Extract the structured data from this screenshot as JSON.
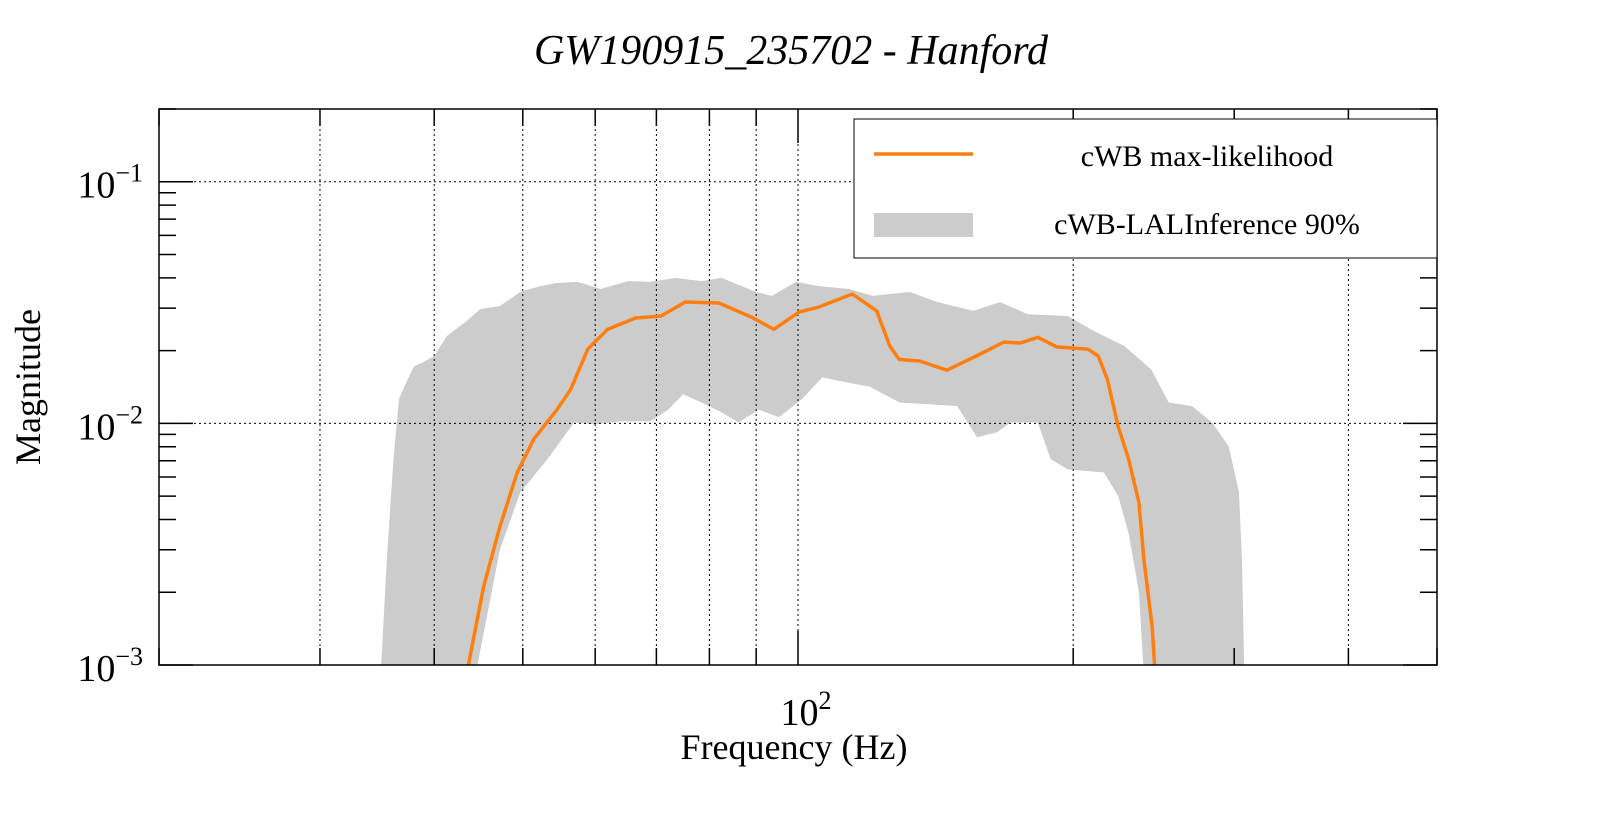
{
  "chart_data": {
    "type": "line",
    "title": "GW190915_235702 - Hanford",
    "xlabel": "Frequency (Hz)",
    "ylabel": "Magnitude",
    "xscale": "log",
    "yscale": "log",
    "xlim": [
      20,
      500
    ],
    "ylim": [
      0.001,
      0.2
    ],
    "grid": true,
    "x_gridlines": [
      30,
      40,
      50,
      60,
      70,
      80,
      90,
      100,
      200,
      400
    ],
    "y_gridlines": [
      0.1,
      0.01
    ],
    "x_tick_labels": [
      {
        "value": 100,
        "base": "10",
        "exp": "2"
      }
    ],
    "y_tick_labels": [
      {
        "value": 0.1,
        "base": "10",
        "exp": "−1"
      },
      {
        "value": 0.01,
        "base": "10",
        "exp": "−2"
      },
      {
        "value": 0.001,
        "base": "10",
        "exp": "−3"
      }
    ],
    "legend_position": "top-right",
    "series": [
      {
        "name": "cWB max-likelihood",
        "kind": "line",
        "color": "#ff7f0e",
        "points": [
          [
            43.6,
            0.001
          ],
          [
            45.3,
            0.00211
          ],
          [
            47.2,
            0.00374
          ],
          [
            49.3,
            0.00626
          ],
          [
            51.4,
            0.0086
          ],
          [
            54.5,
            0.0114
          ],
          [
            56.4,
            0.0138
          ],
          [
            58.9,
            0.0203
          ],
          [
            61.9,
            0.0245
          ],
          [
            66.4,
            0.0273
          ],
          [
            70.8,
            0.0278
          ],
          [
            75.3,
            0.0318
          ],
          [
            81.9,
            0.0315
          ],
          [
            89.0,
            0.0275
          ],
          [
            94.1,
            0.0245
          ],
          [
            100.3,
            0.0289
          ],
          [
            105.4,
            0.0303
          ],
          [
            114.7,
            0.0343
          ],
          [
            121.9,
            0.0292
          ],
          [
            126,
            0.0209
          ],
          [
            129,
            0.0184
          ],
          [
            136,
            0.0181
          ],
          [
            145.5,
            0.0166
          ],
          [
            158,
            0.0193
          ],
          [
            168,
            0.0217
          ],
          [
            175,
            0.0215
          ],
          [
            183,
            0.0227
          ],
          [
            192,
            0.0207
          ],
          [
            207.5,
            0.0203
          ],
          [
            213,
            0.019
          ],
          [
            218,
            0.0152
          ],
          [
            224,
            0.0097
          ],
          [
            230,
            0.0071
          ],
          [
            236,
            0.0047
          ],
          [
            239,
            0.00273
          ],
          [
            244,
            0.00144
          ],
          [
            245.5,
            0.001
          ]
        ]
      },
      {
        "name": "cWB-LALInference 90%",
        "kind": "band",
        "color": "#cccccc",
        "upper": [
          [
            35.0,
            0.001
          ],
          [
            35.5,
            0.00273
          ],
          [
            36.1,
            0.0071
          ],
          [
            36.6,
            0.0126
          ],
          [
            37.1,
            0.0142
          ],
          [
            38.0,
            0.0172
          ],
          [
            38.9,
            0.0179
          ],
          [
            40,
            0.019
          ],
          [
            41.3,
            0.023
          ],
          [
            43.4,
            0.0265
          ],
          [
            44.9,
            0.0297
          ],
          [
            47.2,
            0.0306
          ],
          [
            49.7,
            0.035
          ],
          [
            52.2,
            0.037
          ],
          [
            54.5,
            0.0381
          ],
          [
            57.4,
            0.0385
          ],
          [
            60.8,
            0.036
          ],
          [
            65.2,
            0.0388
          ],
          [
            69.0,
            0.0385
          ],
          [
            73.4,
            0.04
          ],
          [
            78.4,
            0.0388
          ],
          [
            82.5,
            0.04
          ],
          [
            89.9,
            0.035
          ],
          [
            93.6,
            0.0337
          ],
          [
            99.5,
            0.0385
          ],
          [
            105.4,
            0.037
          ],
          [
            113.8,
            0.036
          ],
          [
            120.6,
            0.0337
          ],
          [
            132.5,
            0.035
          ],
          [
            141.9,
            0.0318
          ],
          [
            155.5,
            0.0292
          ],
          [
            166.4,
            0.0318
          ],
          [
            178.3,
            0.0283
          ],
          [
            197.3,
            0.0278
          ],
          [
            210.7,
            0.0241
          ],
          [
            227.5,
            0.0209
          ],
          [
            243.5,
            0.0167
          ],
          [
            254.4,
            0.0122
          ],
          [
            269.6,
            0.0118
          ],
          [
            283.7,
            0.0101
          ],
          [
            296,
            0.008
          ],
          [
            303.6,
            0.0052
          ],
          [
            306,
            0.0027
          ],
          [
            307.6,
            0.001
          ]
        ],
        "lower": [
          [
            44.6,
            0.001
          ],
          [
            47.2,
            0.003
          ],
          [
            49.7,
            0.0052
          ],
          [
            53.2,
            0.0071
          ],
          [
            56.9,
            0.0101
          ],
          [
            59.9,
            0.0099
          ],
          [
            64.0,
            0.0102
          ],
          [
            69.0,
            0.0102
          ],
          [
            72.1,
            0.0114
          ],
          [
            74.9,
            0.0132
          ],
          [
            78.4,
            0.0122
          ],
          [
            82.5,
            0.0111
          ],
          [
            86.1,
            0.0101
          ],
          [
            90.6,
            0.0114
          ],
          [
            95.3,
            0.0106
          ],
          [
            101,
            0.0126
          ],
          [
            106.3,
            0.0155
          ],
          [
            111.8,
            0.0149
          ],
          [
            119.7,
            0.0142
          ],
          [
            129.2,
            0.0122
          ],
          [
            149.3,
            0.0118
          ],
          [
            157,
            0.00875
          ],
          [
            165.3,
            0.0092
          ],
          [
            170.8,
            0.0101
          ],
          [
            182.9,
            0.0101
          ],
          [
            189,
            0.0071
          ],
          [
            197.3,
            0.00645
          ],
          [
            216.1,
            0.00626
          ],
          [
            224,
            0.005
          ],
          [
            230,
            0.0035
          ],
          [
            236,
            0.002
          ],
          [
            238.6,
            0.001
          ]
        ]
      }
    ]
  }
}
